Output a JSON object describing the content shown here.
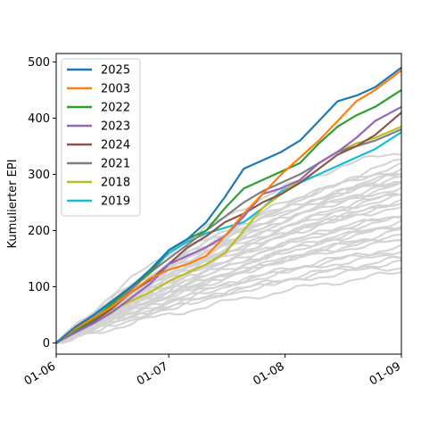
{
  "chart_data": {
    "type": "line",
    "title": "",
    "xlabel": "",
    "ylabel": "Kumulierter EPI",
    "x_ticks": [
      "01-06",
      "01-07",
      "01-08",
      "01-09"
    ],
    "x_tick_days": [
      0,
      30,
      61,
      92
    ],
    "xlim": [
      0,
      92
    ],
    "ylim": [
      -20,
      515
    ],
    "y_ticks": [
      0,
      100,
      200,
      300,
      400,
      500
    ],
    "grid": false,
    "legend_position": "top-left",
    "background_series_color": "#d3d3d3",
    "background_series_finals": [
      125,
      135,
      145,
      150,
      155,
      165,
      170,
      180,
      185,
      195,
      200,
      205,
      210,
      215,
      220,
      225,
      230,
      240,
      245,
      250,
      255,
      260,
      265,
      270,
      275,
      280,
      285,
      290,
      295,
      300,
      305,
      310,
      315,
      325,
      340
    ],
    "series": [
      {
        "name": "2025",
        "color": "#1f77b4",
        "x": [
          0,
          5,
          10,
          15,
          20,
          25,
          30,
          35,
          40,
          45,
          50,
          55,
          60,
          65,
          70,
          75,
          80,
          85,
          92
        ],
        "y": [
          0,
          28,
          50,
          75,
          100,
          130,
          165,
          185,
          215,
          260,
          310,
          325,
          340,
          360,
          395,
          430,
          440,
          455,
          490
        ]
      },
      {
        "name": "2003",
        "color": "#ff7f0e",
        "x": [
          0,
          5,
          10,
          15,
          20,
          25,
          30,
          35,
          40,
          45,
          50,
          55,
          60,
          65,
          70,
          75,
          80,
          85,
          92
        ],
        "y": [
          0,
          25,
          45,
          65,
          90,
          115,
          130,
          140,
          155,
          190,
          230,
          265,
          300,
          330,
          360,
          395,
          430,
          450,
          485
        ]
      },
      {
        "name": "2022",
        "color": "#2ca02c",
        "x": [
          0,
          5,
          10,
          15,
          20,
          25,
          30,
          35,
          40,
          45,
          50,
          55,
          60,
          65,
          70,
          75,
          80,
          85,
          92
        ],
        "y": [
          0,
          22,
          42,
          70,
          100,
          125,
          165,
          185,
          200,
          240,
          275,
          290,
          305,
          320,
          355,
          385,
          405,
          420,
          450
        ]
      },
      {
        "name": "2023",
        "color": "#9467bd",
        "x": [
          0,
          5,
          10,
          15,
          20,
          25,
          30,
          35,
          40,
          45,
          50,
          55,
          60,
          65,
          70,
          75,
          80,
          85,
          92
        ],
        "y": [
          0,
          18,
          35,
          55,
          80,
          105,
          140,
          155,
          170,
          190,
          225,
          265,
          275,
          290,
          320,
          340,
          365,
          395,
          420
        ]
      },
      {
        "name": "2024",
        "color": "#8c564b",
        "x": [
          0,
          5,
          10,
          15,
          20,
          25,
          30,
          35,
          40,
          45,
          50,
          55,
          60,
          65,
          70,
          75,
          80,
          85,
          92
        ],
        "y": [
          0,
          20,
          38,
          62,
          90,
          112,
          140,
          170,
          190,
          215,
          230,
          250,
          265,
          285,
          310,
          335,
          350,
          370,
          410
        ]
      },
      {
        "name": "2021",
        "color": "#7f7f7f",
        "x": [
          0,
          5,
          10,
          15,
          20,
          25,
          30,
          35,
          40,
          45,
          50,
          55,
          60,
          65,
          70,
          75,
          80,
          85,
          92
        ],
        "y": [
          0,
          20,
          40,
          65,
          95,
          125,
          150,
          175,
          200,
          225,
          250,
          270,
          285,
          300,
          320,
          340,
          350,
          360,
          380
        ]
      },
      {
        "name": "2018",
        "color": "#bcbd22",
        "x": [
          0,
          5,
          10,
          15,
          20,
          25,
          30,
          35,
          40,
          45,
          50,
          55,
          60,
          65,
          70,
          75,
          80,
          85,
          92
        ],
        "y": [
          0,
          22,
          40,
          58,
          75,
          90,
          110,
          125,
          140,
          160,
          200,
          240,
          265,
          290,
          320,
          340,
          355,
          365,
          385
        ]
      },
      {
        "name": "2019",
        "color": "#17becf",
        "x": [
          0,
          5,
          10,
          15,
          20,
          25,
          30,
          35,
          40,
          45,
          50,
          55,
          60,
          65,
          70,
          75,
          80,
          85,
          92
        ],
        "y": [
          0,
          25,
          48,
          72,
          100,
          125,
          160,
          180,
          195,
          205,
          215,
          240,
          270,
          285,
          300,
          315,
          330,
          345,
          375
        ]
      }
    ]
  }
}
